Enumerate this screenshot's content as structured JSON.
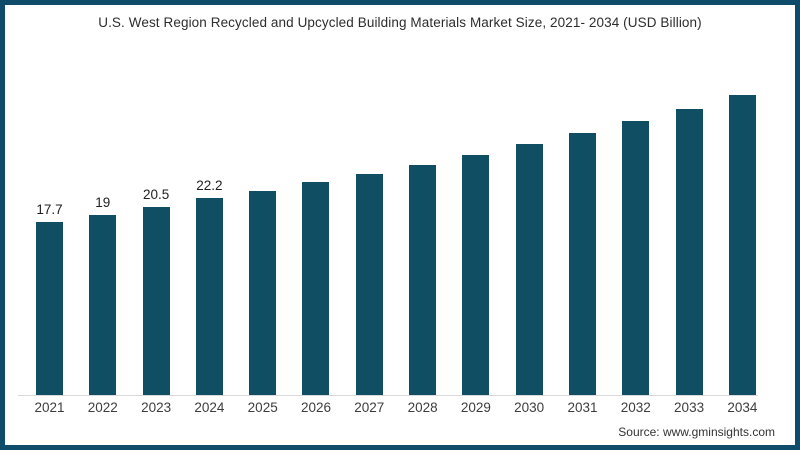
{
  "frame": {
    "border_color": "#0f4c69",
    "background": "#ffffff"
  },
  "title": "U.S. West Region Recycled and Upcycled Building Materials Market Size, 2021- 2034 (USD Billion)",
  "source": "Source: www.gminsights.com",
  "chart_data": {
    "type": "bar",
    "title": "U.S. West Region Recycled and Upcycled Building Materials Market Size, 2021- 2034 (USD Billion)",
    "categories": [
      "2021",
      "2022",
      "2023",
      "2024",
      "2025",
      "2026",
      "2027",
      "2028",
      "2029",
      "2030",
      "2031",
      "2032",
      "2033",
      "2034"
    ],
    "values": [
      17.7,
      19,
      20.5,
      22.2,
      23.6,
      25.2,
      26.8,
      28.5,
      30.4,
      32.4,
      34.5,
      36.7,
      39.1,
      41.7
    ],
    "bar_labels": [
      "17.7",
      "19",
      "20.5",
      "22.2",
      null,
      null,
      null,
      null,
      null,
      null,
      null,
      null,
      null,
      null
    ],
    "xlabel": "",
    "ylabel": "",
    "unit": "USD Billion",
    "ylim": [
      -15,
      53
    ],
    "grid": false,
    "legend": false,
    "bar_color": "#0f4e63",
    "axis_line_color": "#d9d9d9",
    "value_label_color": "#1f1f1f",
    "tick_label_color": "#3d3d3d"
  }
}
